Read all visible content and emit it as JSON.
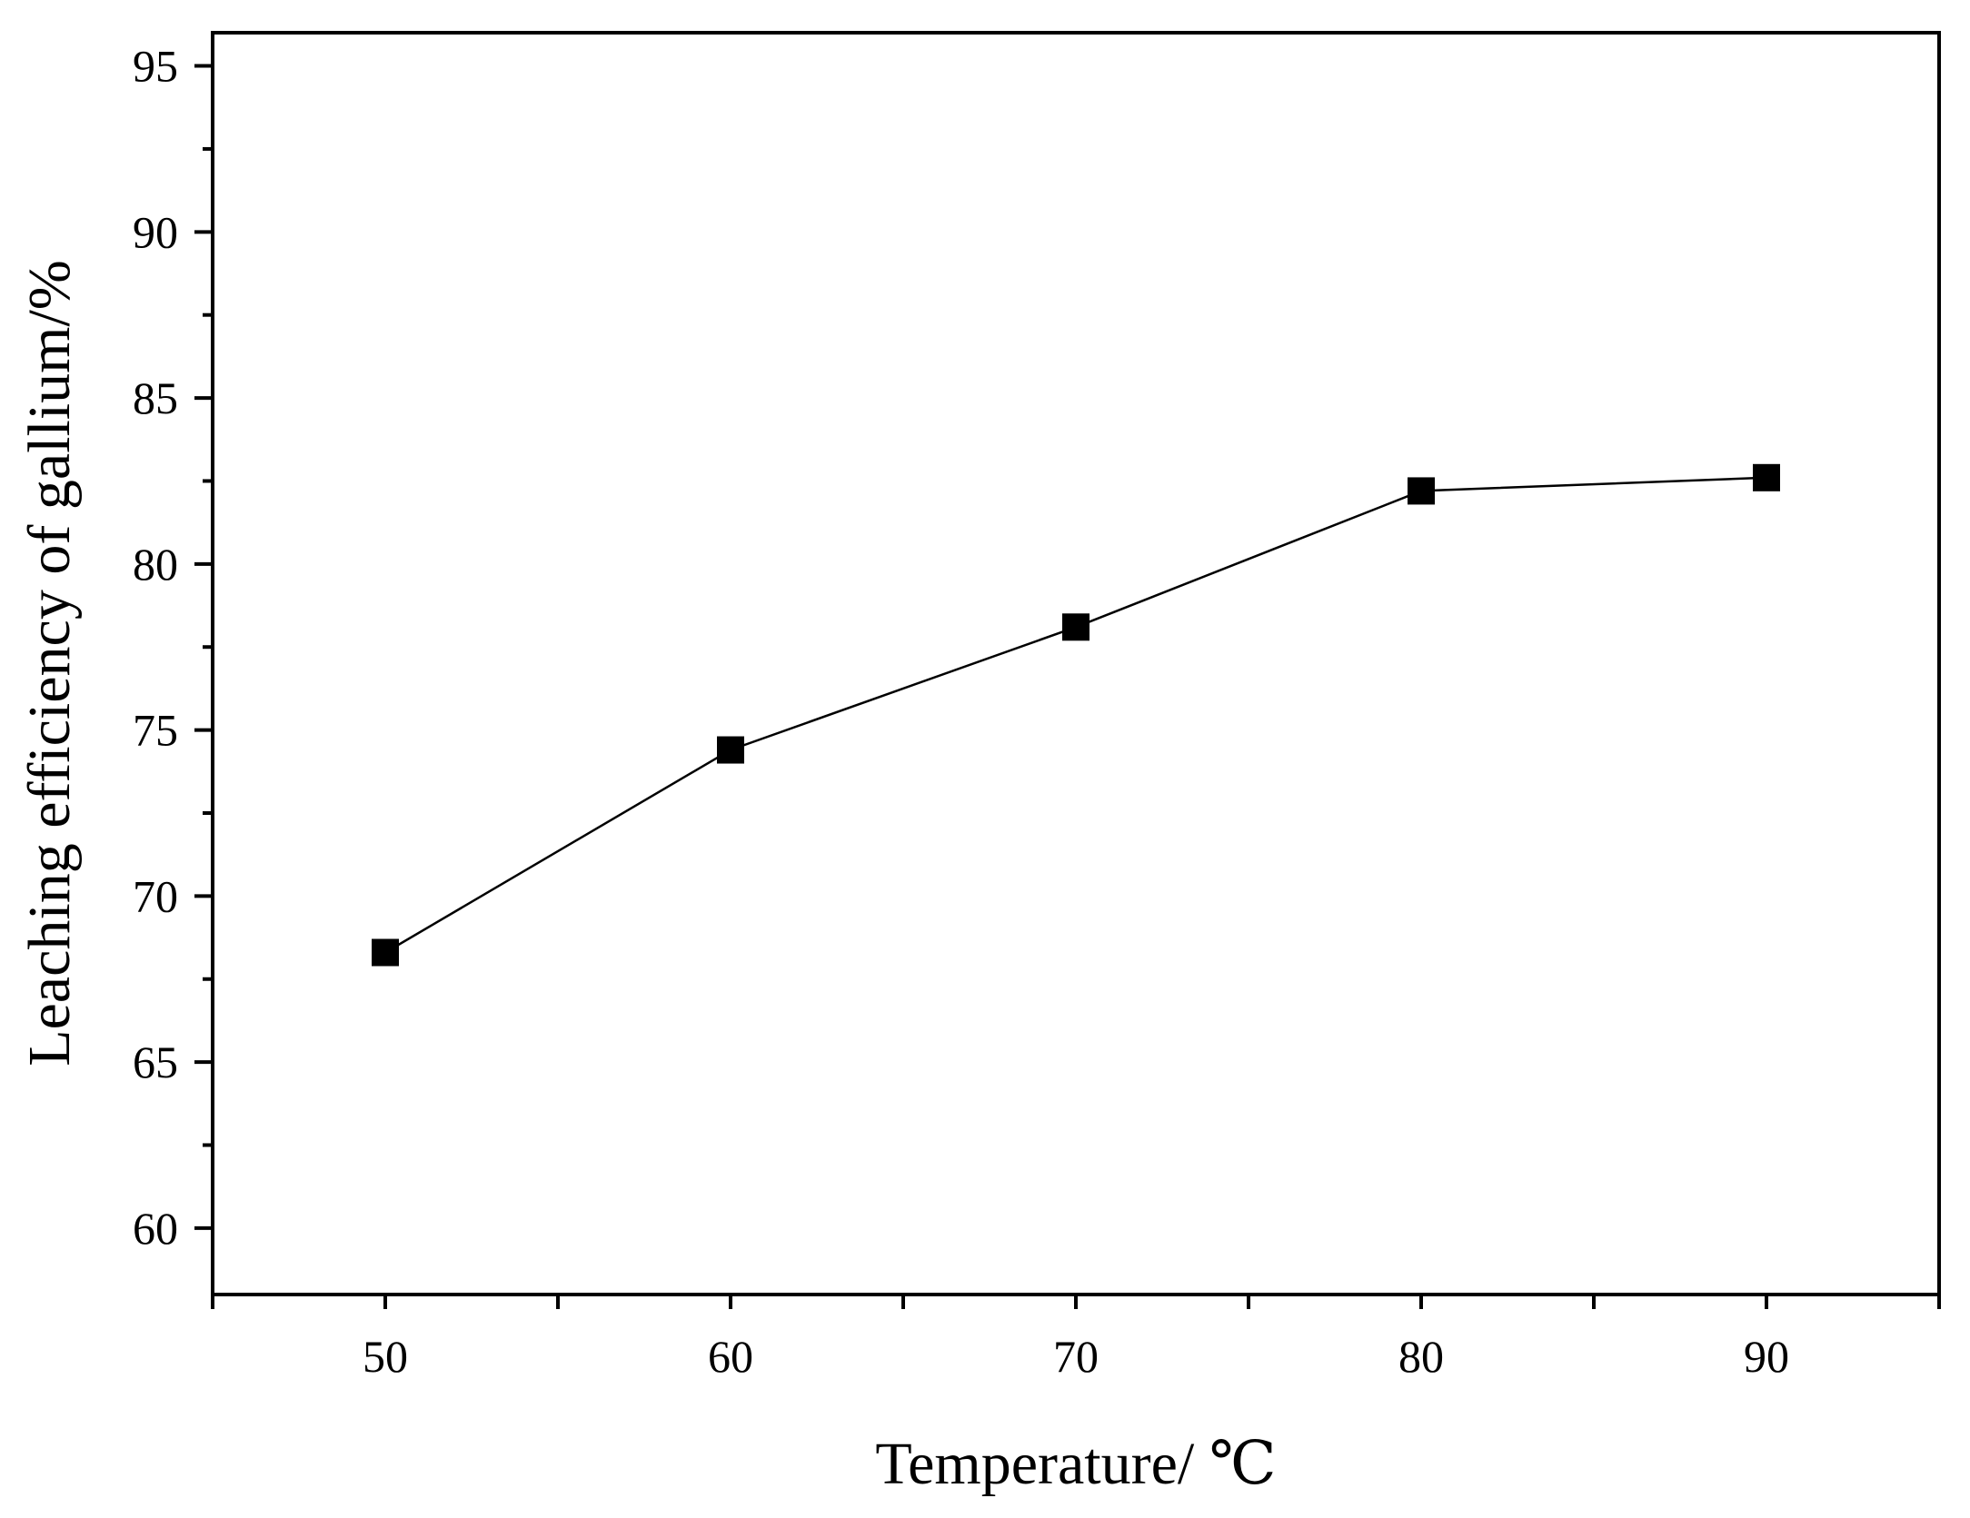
{
  "chart_data": {
    "type": "line",
    "title": "",
    "xlabel": "Temperature/ ℃",
    "ylabel": "Leaching efficiency of gallium/%",
    "xlim": [
      45,
      95
    ],
    "ylim": [
      58,
      96
    ],
    "xticks": [
      50,
      60,
      70,
      80,
      90
    ],
    "xtick_labels": [
      "50",
      "60",
      "70",
      "80",
      "90"
    ],
    "yticks": [
      60,
      65,
      70,
      75,
      80,
      85,
      90,
      95
    ],
    "ytick_labels": [
      "60",
      "65",
      "70",
      "75",
      "80",
      "85",
      "90",
      "95"
    ],
    "grid": false,
    "legend": "none",
    "marker": "square",
    "series": [
      {
        "x": [
          50,
          60,
          70,
          80,
          90
        ],
        "values": [
          68.3,
          74.4,
          78.1,
          82.2,
          82.6
        ],
        "color": "#000000"
      }
    ]
  }
}
